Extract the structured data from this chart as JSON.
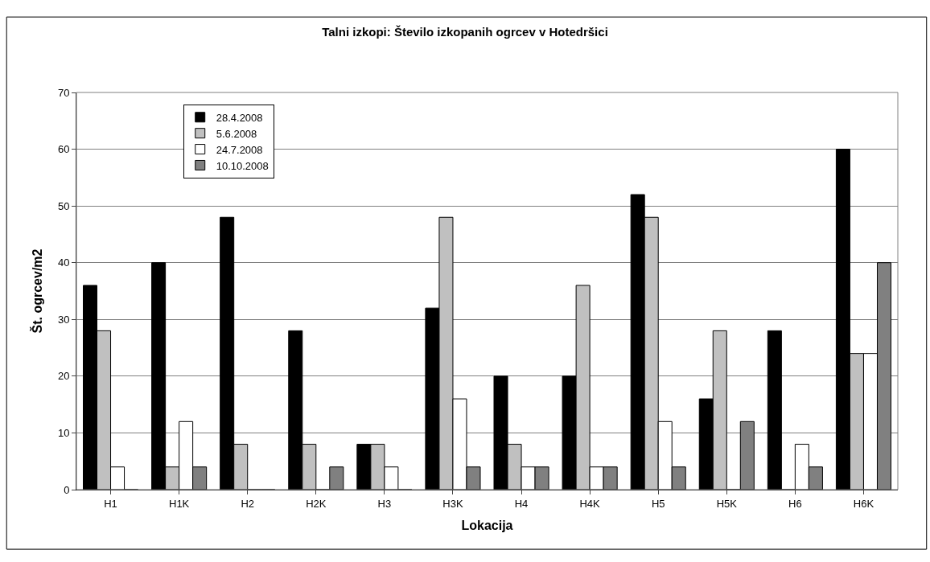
{
  "chart_data": {
    "type": "bar",
    "title": "Talni izkopi: Število izkopanih ogrcev v Hotedršici",
    "xlabel": "Lokacija",
    "ylabel": "Št. ogrcev/m2",
    "categories": [
      "H1",
      "H1K",
      "H2",
      "H2K",
      "H3",
      "H3K",
      "H4",
      "H4K",
      "H5",
      "H5K",
      "H6",
      "H6K"
    ],
    "series": [
      {
        "name": "28.4.2008",
        "color": "#000000",
        "values": [
          36,
          40,
          48,
          28,
          8,
          32,
          20,
          20,
          52,
          16,
          28,
          60
        ]
      },
      {
        "name": "5.6.2008",
        "color": "#c0c0c0",
        "values": [
          28,
          4,
          8,
          8,
          8,
          48,
          8,
          36,
          48,
          28,
          0,
          24
        ]
      },
      {
        "name": "24.7.2008",
        "color": "#ffffff",
        "values": [
          4,
          12,
          0,
          0,
          4,
          16,
          4,
          4,
          12,
          0,
          8,
          24
        ]
      },
      {
        "name": "10.10.2008",
        "color": "#808080",
        "values": [
          0,
          4,
          0,
          4,
          0,
          4,
          4,
          4,
          4,
          12,
          4,
          40
        ]
      }
    ],
    "ylim": [
      0,
      70
    ],
    "yticks": [
      0,
      10,
      20,
      30,
      40,
      50,
      60,
      70
    ],
    "grid": "y",
    "legend": "top left"
  }
}
